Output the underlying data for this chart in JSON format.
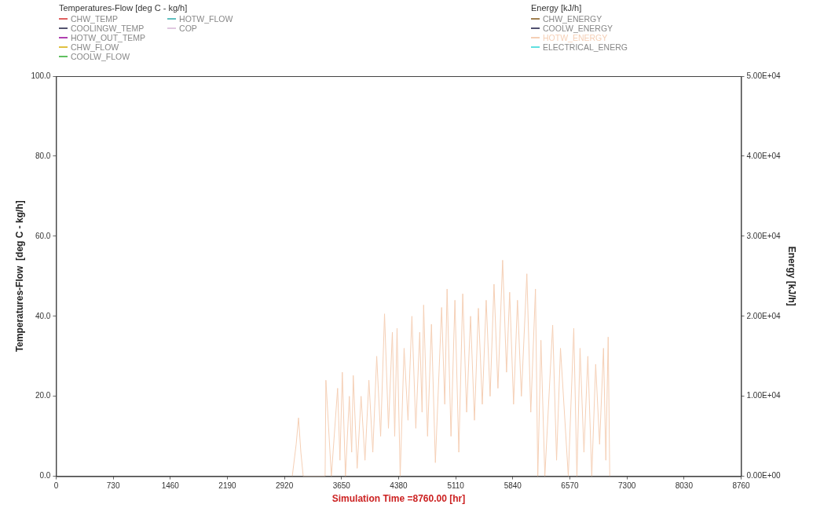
{
  "chart_data": {
    "type": "line",
    "xlabel": "Simulation Time =8760.00 [hr]",
    "ylabel": "Temperatures-Flow  [deg C - kg/h]",
    "y2label": "Energy [kJ/h]",
    "xlim": [
      0,
      8760
    ],
    "xticks": [
      0,
      730,
      1460,
      2190,
      2920,
      3650,
      4380,
      5110,
      5840,
      6570,
      7300,
      8030,
      8760
    ],
    "ylim": [
      0,
      100
    ],
    "yticks": [
      {
        "value": 0,
        "label": "0.0"
      },
      {
        "value": 20,
        "label": "20.0"
      },
      {
        "value": 40,
        "label": "40.0"
      },
      {
        "value": 60,
        "label": "60.0"
      },
      {
        "value": 80,
        "label": "80.0"
      },
      {
        "value": 100,
        "label": "100.0"
      }
    ],
    "y2lim": [
      0,
      50000
    ],
    "y2ticks": [
      {
        "value": 0,
        "label": "0.00E+00"
      },
      {
        "value": 10000,
        "label": "1.00E+04"
      },
      {
        "value": 20000,
        "label": "2.00E+04"
      },
      {
        "value": 30000,
        "label": "3.00E+04"
      },
      {
        "value": 40000,
        "label": "4.00E+04"
      },
      {
        "value": 50000,
        "label": "5.00E+04"
      }
    ],
    "grid": false,
    "legend": "top",
    "marker": "none",
    "line_style": "solid",
    "series": [
      {
        "name": "CHW_TEMP",
        "color": "#e06060"
      },
      {
        "name": "COOLINGW_TEMP",
        "color": "#555570"
      },
      {
        "name": "HOTW_OUT_TEMP",
        "color": "#b040b0"
      },
      {
        "name": "CHW_FLOW",
        "color": "#e0c040"
      },
      {
        "name": "COOLW_FLOW",
        "color": "#60c060"
      },
      {
        "name": "HOTW_FLOW",
        "color": "#60c0c0"
      },
      {
        "name": "COP",
        "color": "#e0c8e0"
      },
      {
        "name": "CHW_ENERGY",
        "color": "#a08050",
        "axis": "y2"
      },
      {
        "name": "COOLW_ENERGY",
        "color": "#505070",
        "axis": "y2"
      },
      {
        "name": "HOTW_ENERGY",
        "color": "#f5cfb5",
        "axis": "y2",
        "x": [
          3020,
          3070,
          3100,
          3130,
          3160,
          3440,
          3450,
          3520,
          3600,
          3630,
          3660,
          3700,
          3750,
          3780,
          3800,
          3850,
          3900,
          3950,
          4000,
          4050,
          4100,
          4150,
          4200,
          4250,
          4300,
          4330,
          4360,
          4400,
          4450,
          4500,
          4550,
          4600,
          4650,
          4680,
          4700,
          4750,
          4800,
          4850,
          4930,
          4970,
          5000,
          5050,
          5100,
          5150,
          5200,
          5250,
          5300,
          5350,
          5400,
          5450,
          5500,
          5550,
          5600,
          5650,
          5710,
          5760,
          5800,
          5850,
          5900,
          5950,
          6020,
          6070,
          6130,
          6160,
          6200,
          6250,
          6350,
          6400,
          6450,
          6550,
          6620,
          6660,
          6700,
          6750,
          6800,
          6850,
          6900,
          6950,
          7000,
          7030,
          7060,
          7080
        ],
        "values": [
          0,
          4000,
          7300,
          3000,
          0,
          0,
          12000,
          0,
          11000,
          2000,
          13000,
          0,
          10000,
          3000,
          12600,
          1000,
          10000,
          2000,
          12000,
          3000,
          15000,
          5000,
          20300,
          6000,
          18000,
          5000,
          18500,
          0,
          16000,
          7000,
          20000,
          6000,
          18000,
          8000,
          21400,
          5000,
          19000,
          1700,
          21100,
          9000,
          23400,
          5000,
          22000,
          3000,
          22800,
          8000,
          20000,
          7000,
          21000,
          9000,
          22000,
          10000,
          24000,
          11000,
          27000,
          13000,
          23000,
          9000,
          22000,
          10000,
          25300,
          8000,
          23400,
          0,
          17000,
          0,
          18900,
          2000,
          16000,
          0,
          18500,
          0,
          16000,
          3000,
          15000,
          0,
          14000,
          4000,
          16000,
          2000,
          17400,
          0
        ]
      },
      {
        "name": "ELECTRICAL_ENERG",
        "color": "#60e0e0",
        "axis": "y2"
      }
    ]
  }
}
